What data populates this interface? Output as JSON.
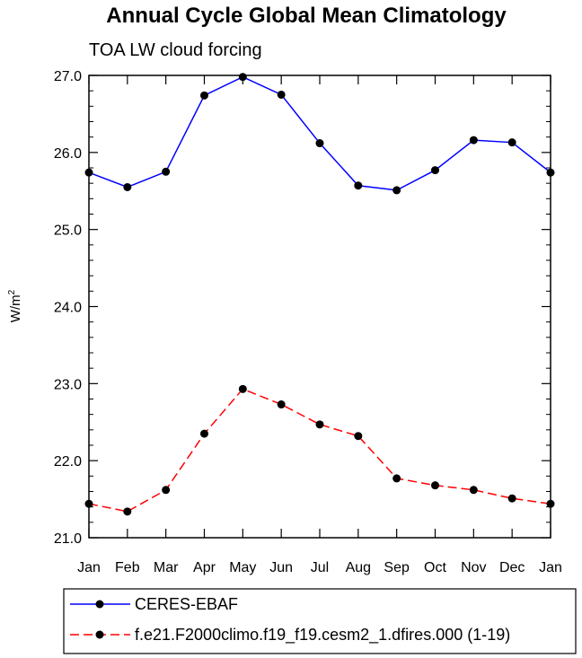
{
  "chart_data": {
    "type": "line",
    "title": "Annual Cycle Global Mean Climatology",
    "subtitle": "TOA LW cloud forcing",
    "ylabel_base": "W/m",
    "ylabel_sup": "2",
    "xlabel": "",
    "categories": [
      "Jan",
      "Feb",
      "Mar",
      "Apr",
      "May",
      "Jun",
      "Jul",
      "Aug",
      "Sep",
      "Oct",
      "Nov",
      "Dec",
      "Jan"
    ],
    "ylim": [
      21.0,
      27.0
    ],
    "yticks": [
      "21.0",
      "22.0",
      "23.0",
      "24.0",
      "25.0",
      "26.0",
      "27.0"
    ],
    "legend_position": "bottom",
    "series": [
      {
        "name": "CERES-EBAF",
        "color": "#0000ff",
        "dash": "solid",
        "values": [
          25.74,
          25.55,
          25.75,
          26.74,
          26.98,
          26.75,
          26.12,
          25.57,
          25.51,
          25.77,
          26.16,
          26.13,
          25.74
        ]
      },
      {
        "name": "f.e21.F2000climo.f19_f19.cesm2_1.dfires.000 (1-19)",
        "color": "#ff0000",
        "dash": "dashed",
        "values": [
          21.44,
          21.34,
          21.62,
          22.35,
          22.93,
          22.73,
          22.47,
          22.32,
          21.77,
          21.68,
          21.62,
          21.51,
          21.44
        ]
      }
    ]
  }
}
